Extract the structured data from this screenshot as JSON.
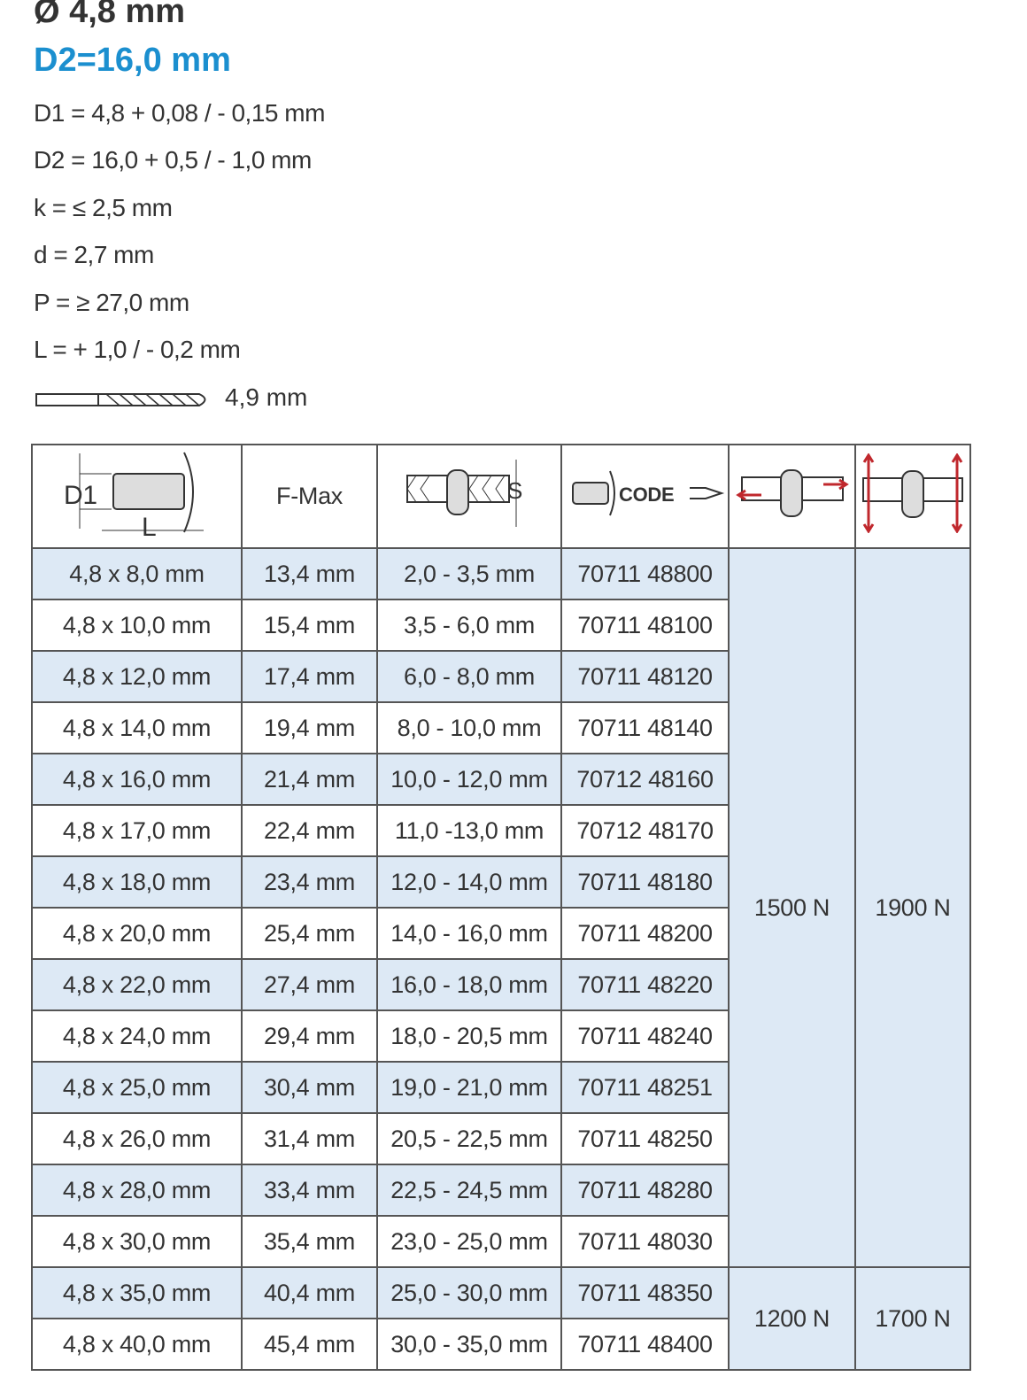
{
  "title": "Ø 4,8 mm",
  "subtitle": "D2=16,0 mm",
  "specs": [
    "D1 = 4,8 + 0,08 / - 0,15 mm",
    "D2 = 16,0 + 0,5 / - 1,0 mm",
    "k = ≤ 2,5 mm",
    "d = 2,7 mm",
    "P = ≥ 27,0 mm",
    "L = + 1,0 / - 0,2 mm"
  ],
  "drill": {
    "icon": "drill-bit-icon",
    "value": "4,9 mm"
  },
  "table": {
    "headers": {
      "dim_icon": "rivet-dimension-icon",
      "dim_d1": "D1",
      "dim_l": "L",
      "fmax": "F-Max",
      "grip_icon": "grip-range-icon",
      "grip_s": "S",
      "code_icon": "code-icon",
      "code": "CODE",
      "shear_icon": "shear-force-icon",
      "tensile_icon": "tensile-force-icon"
    },
    "rows": [
      [
        "4,8 x 8,0 mm",
        "13,4 mm",
        "2,0 - 3,5 mm",
        "70711 48800"
      ],
      [
        "4,8 x 10,0 mm",
        "15,4 mm",
        "3,5 - 6,0 mm",
        "70711 48100"
      ],
      [
        "4,8 x 12,0 mm",
        "17,4 mm",
        "6,0 - 8,0 mm",
        "70711 48120"
      ],
      [
        "4,8 x 14,0 mm",
        "19,4 mm",
        "8,0 - 10,0 mm",
        "70711 48140"
      ],
      [
        "4,8 x 16,0 mm",
        "21,4 mm",
        "10,0 - 12,0 mm",
        "70712 48160"
      ],
      [
        "4,8 x 17,0 mm",
        "22,4 mm",
        "11,0 -13,0 mm",
        "70712 48170"
      ],
      [
        "4,8 x 18,0 mm",
        "23,4 mm",
        "12,0 - 14,0 mm",
        "70711 48180"
      ],
      [
        "4,8 x 20,0 mm",
        "25,4 mm",
        "14,0 - 16,0 mm",
        "70711 48200"
      ],
      [
        "4,8 x 22,0 mm",
        "27,4 mm",
        "16,0 - 18,0 mm",
        "70711 48220"
      ],
      [
        "4,8 x 24,0 mm",
        "29,4 mm",
        "18,0 - 20,5 mm",
        "70711 48240"
      ],
      [
        "4,8 x 25,0 mm",
        "30,4 mm",
        "19,0 - 21,0 mm",
        "70711 48251"
      ],
      [
        "4,8 x 26,0 mm",
        "31,4 mm",
        "20,5 - 22,5 mm",
        "70711 48250"
      ],
      [
        "4,8 x 28,0 mm",
        "33,4 mm",
        "22,5 - 24,5 mm",
        "70711 48280"
      ],
      [
        "4,8 x 30,0 mm",
        "35,4 mm",
        "23,0 - 25,0 mm",
        "70711 48030"
      ],
      [
        "4,8 x 35,0 mm",
        "40,4 mm",
        "25,0 - 30,0 mm",
        "70711 48350"
      ],
      [
        "4,8 x 40,0 mm",
        "45,4 mm",
        "30,0 - 35,0 mm",
        "70711 48400"
      ]
    ],
    "groups": [
      {
        "shear": "1500 N",
        "tensile": "1900 N"
      },
      {
        "shear": "1200 N",
        "tensile": "1700 N"
      }
    ]
  },
  "colors": {
    "accent": "#1b8fcf",
    "row_alt": "#dde9f5",
    "arrow": "#c0282d"
  }
}
